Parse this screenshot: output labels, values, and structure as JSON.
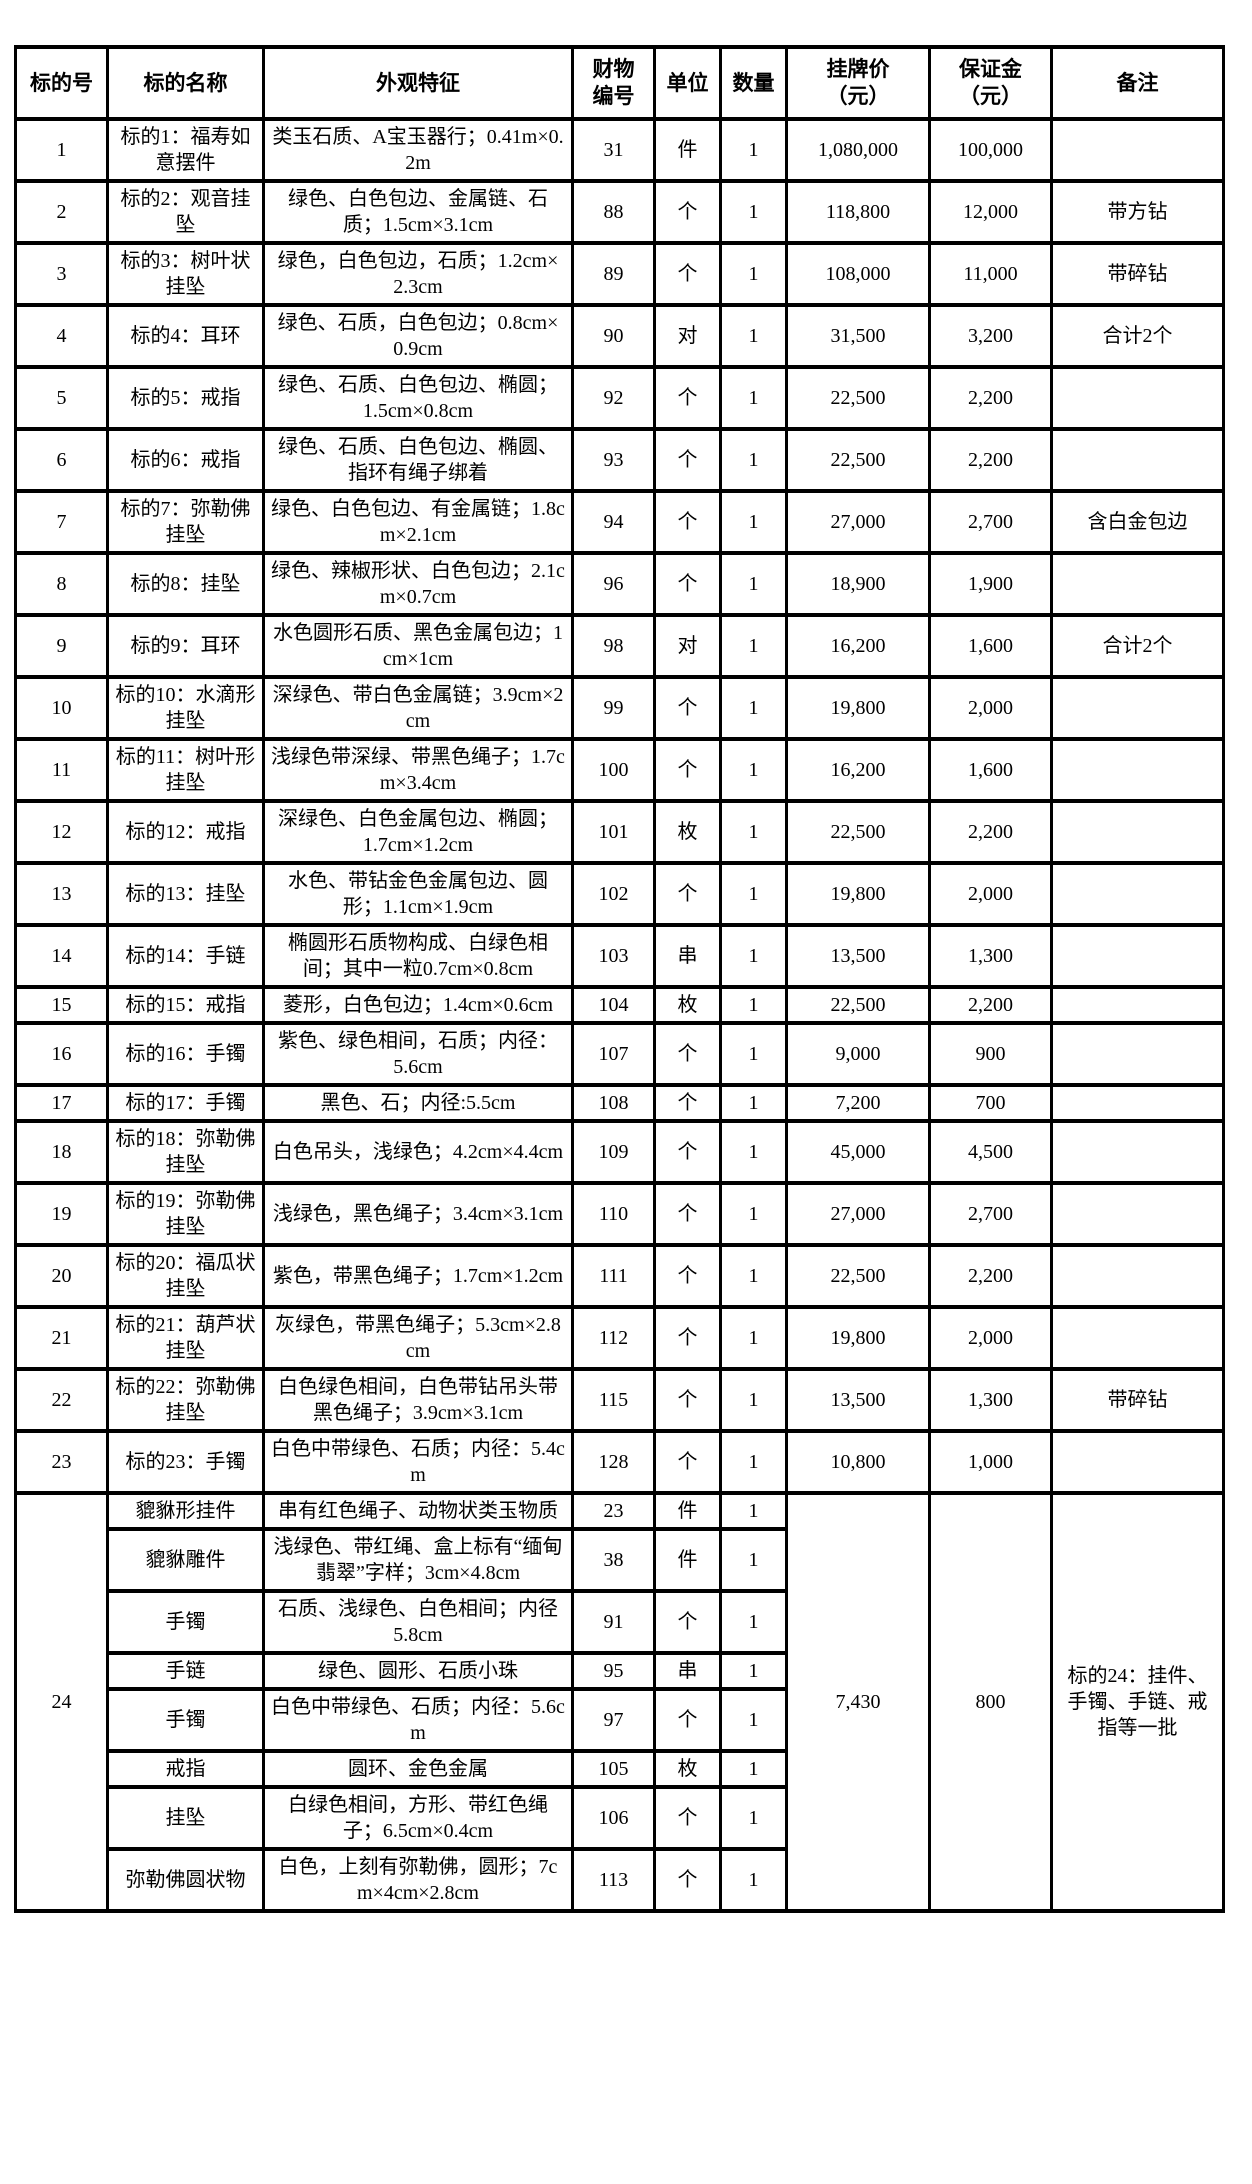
{
  "table": {
    "columns": [
      "标的号",
      "标的名称",
      "外观特征",
      "财物\n编号",
      "单位",
      "数量",
      "挂牌价\n（元）",
      "保证金\n（元）",
      "备注"
    ],
    "rows": [
      {
        "no": "1",
        "name": "标的1：福寿如意摆件",
        "desc": "类玉石质、A宝玉器行；0.41m×0.2m",
        "prop_no": "31",
        "unit": "件",
        "qty": "1",
        "price": "1,080,000",
        "deposit": "100,000",
        "note": ""
      },
      {
        "no": "2",
        "name": "标的2：观音挂坠",
        "desc": "绿色、白色包边、金属链、石质；1.5cm×3.1cm",
        "prop_no": "88",
        "unit": "个",
        "qty": "1",
        "price": "118,800",
        "deposit": "12,000",
        "note": "带方钻"
      },
      {
        "no": "3",
        "name": "标的3：树叶状挂坠",
        "desc": "绿色，白色包边，石质；1.2cm×2.3cm",
        "prop_no": "89",
        "unit": "个",
        "qty": "1",
        "price": "108,000",
        "deposit": "11,000",
        "note": "带碎钻"
      },
      {
        "no": "4",
        "name": "标的4：耳环",
        "desc": "绿色、石质，白色包边；0.8cm×0.9cm",
        "prop_no": "90",
        "unit": "对",
        "qty": "1",
        "price": "31,500",
        "deposit": "3,200",
        "note": "合计2个"
      },
      {
        "no": "5",
        "name": "标的5：戒指",
        "desc": "绿色、石质、白色包边、椭圆；1.5cm×0.8cm",
        "prop_no": "92",
        "unit": "个",
        "qty": "1",
        "price": "22,500",
        "deposit": "2,200",
        "note": ""
      },
      {
        "no": "6",
        "name": "标的6：戒指",
        "desc": "绿色、石质、白色包边、椭圆、指环有绳子绑着",
        "prop_no": "93",
        "unit": "个",
        "qty": "1",
        "price": "22,500",
        "deposit": "2,200",
        "note": ""
      },
      {
        "no": "7",
        "name": "标的7：弥勒佛挂坠",
        "desc": "绿色、白色包边、有金属链；1.8cm×2.1cm",
        "prop_no": "94",
        "unit": "个",
        "qty": "1",
        "price": "27,000",
        "deposit": "2,700",
        "note": "含白金包边"
      },
      {
        "no": "8",
        "name": "标的8：挂坠",
        "desc": "绿色、辣椒形状、白色包边；2.1cm×0.7cm",
        "prop_no": "96",
        "unit": "个",
        "qty": "1",
        "price": "18,900",
        "deposit": "1,900",
        "note": ""
      },
      {
        "no": "9",
        "name": "标的9：耳环",
        "desc": "水色圆形石质、黑色金属包边；1cm×1cm",
        "prop_no": "98",
        "unit": "对",
        "qty": "1",
        "price": "16,200",
        "deposit": "1,600",
        "note": "合计2个"
      },
      {
        "no": "10",
        "name": "标的10：水滴形挂坠",
        "desc": "深绿色、带白色金属链；3.9cm×2cm",
        "prop_no": "99",
        "unit": "个",
        "qty": "1",
        "price": "19,800",
        "deposit": "2,000",
        "note": ""
      },
      {
        "no": "11",
        "name": "标的11：树叶形挂坠",
        "desc": "浅绿色带深绿、带黑色绳子；1.7cm×3.4cm",
        "prop_no": "100",
        "unit": "个",
        "qty": "1",
        "price": "16,200",
        "deposit": "1,600",
        "note": ""
      },
      {
        "no": "12",
        "name": "标的12：戒指",
        "desc": "深绿色、白色金属包边、椭圆；1.7cm×1.2cm",
        "prop_no": "101",
        "unit": "枚",
        "qty": "1",
        "price": "22,500",
        "deposit": "2,200",
        "note": ""
      },
      {
        "no": "13",
        "name": "标的13：挂坠",
        "desc": "水色、带钻金色金属包边、圆形；1.1cm×1.9cm",
        "prop_no": "102",
        "unit": "个",
        "qty": "1",
        "price": "19,800",
        "deposit": "2,000",
        "note": ""
      },
      {
        "no": "14",
        "name": "标的14：手链",
        "desc": "椭圆形石质物构成、白绿色相间；其中一粒0.7cm×0.8cm",
        "prop_no": "103",
        "unit": "串",
        "qty": "1",
        "price": "13,500",
        "deposit": "1,300",
        "note": ""
      },
      {
        "no": "15",
        "name": "标的15：戒指",
        "desc": "菱形，白色包边；1.4cm×0.6cm",
        "prop_no": "104",
        "unit": "枚",
        "qty": "1",
        "price": "22,500",
        "deposit": "2,200",
        "note": ""
      },
      {
        "no": "16",
        "name": "标的16：手镯",
        "desc": "紫色、绿色相间，石质；内径：5.6cm",
        "prop_no": "107",
        "unit": "个",
        "qty": "1",
        "price": "9,000",
        "deposit": "900",
        "note": ""
      },
      {
        "no": "17",
        "name": "标的17：手镯",
        "desc": "黑色、石；内径:5.5cm",
        "prop_no": "108",
        "unit": "个",
        "qty": "1",
        "price": "7,200",
        "deposit": "700",
        "note": ""
      },
      {
        "no": "18",
        "name": "标的18：弥勒佛挂坠",
        "desc": "白色吊头，浅绿色；4.2cm×4.4cm",
        "prop_no": "109",
        "unit": "个",
        "qty": "1",
        "price": "45,000",
        "deposit": "4,500",
        "note": ""
      },
      {
        "no": "19",
        "name": "标的19：弥勒佛挂坠",
        "desc": "浅绿色，黑色绳子；3.4cm×3.1cm",
        "prop_no": "110",
        "unit": "个",
        "qty": "1",
        "price": "27,000",
        "deposit": "2,700",
        "note": ""
      },
      {
        "no": "20",
        "name": "标的20：福瓜状挂坠",
        "desc": "紫色，带黑色绳子；1.7cm×1.2cm",
        "prop_no": "111",
        "unit": "个",
        "qty": "1",
        "price": "22,500",
        "deposit": "2,200",
        "note": ""
      },
      {
        "no": "21",
        "name": "标的21：葫芦状挂坠",
        "desc": "灰绿色，带黑色绳子；5.3cm×2.8cm",
        "prop_no": "112",
        "unit": "个",
        "qty": "1",
        "price": "19,800",
        "deposit": "2,000",
        "note": ""
      },
      {
        "no": "22",
        "name": "标的22：弥勒佛挂坠",
        "desc": "白色绿色相间，白色带钻吊头带黑色绳子；3.9cm×3.1cm",
        "prop_no": "115",
        "unit": "个",
        "qty": "1",
        "price": "13,500",
        "deposit": "1,300",
        "note": "带碎钻"
      },
      {
        "no": "23",
        "name": "标的23：手镯",
        "desc": "白色中带绿色、石质；内径：5.4cm",
        "prop_no": "128",
        "unit": "个",
        "qty": "1",
        "price": "10,800",
        "deposit": "1,000",
        "note": ""
      }
    ],
    "group24": {
      "no": "24",
      "price": "7,430",
      "deposit": "800",
      "note": "标的24：挂件、手镯、手链、戒指等一批",
      "items": [
        {
          "name": "貔貅形挂件",
          "desc": "串有红色绳子、动物状类玉物质",
          "prop_no": "23",
          "unit": "件",
          "qty": "1"
        },
        {
          "name": "貔貅雕件",
          "desc": "浅绿色、带红绳、盒上标有“缅甸翡翠”字样；3cm×4.8cm",
          "prop_no": "38",
          "unit": "件",
          "qty": "1"
        },
        {
          "name": "手镯",
          "desc": "石质、浅绿色、白色相间；内径5.8cm",
          "prop_no": "91",
          "unit": "个",
          "qty": "1"
        },
        {
          "name": "手链",
          "desc": "绿色、圆形、石质小珠",
          "prop_no": "95",
          "unit": "串",
          "qty": "1"
        },
        {
          "name": "手镯",
          "desc": "白色中带绿色、石质；内径：5.6cm",
          "prop_no": "97",
          "unit": "个",
          "qty": "1"
        },
        {
          "name": "戒指",
          "desc": "圆环、金色金属",
          "prop_no": "105",
          "unit": "枚",
          "qty": "1"
        },
        {
          "name": "挂坠",
          "desc": "白绿色相间，方形、带红色绳子；6.5cm×0.4cm",
          "prop_no": "106",
          "unit": "个",
          "qty": "1"
        },
        {
          "name": "弥勒佛圆状物",
          "desc": "白色，上刻有弥勒佛，圆形；7cm×4cm×2.8cm",
          "prop_no": "113",
          "unit": "个",
          "qty": "1"
        }
      ]
    }
  }
}
